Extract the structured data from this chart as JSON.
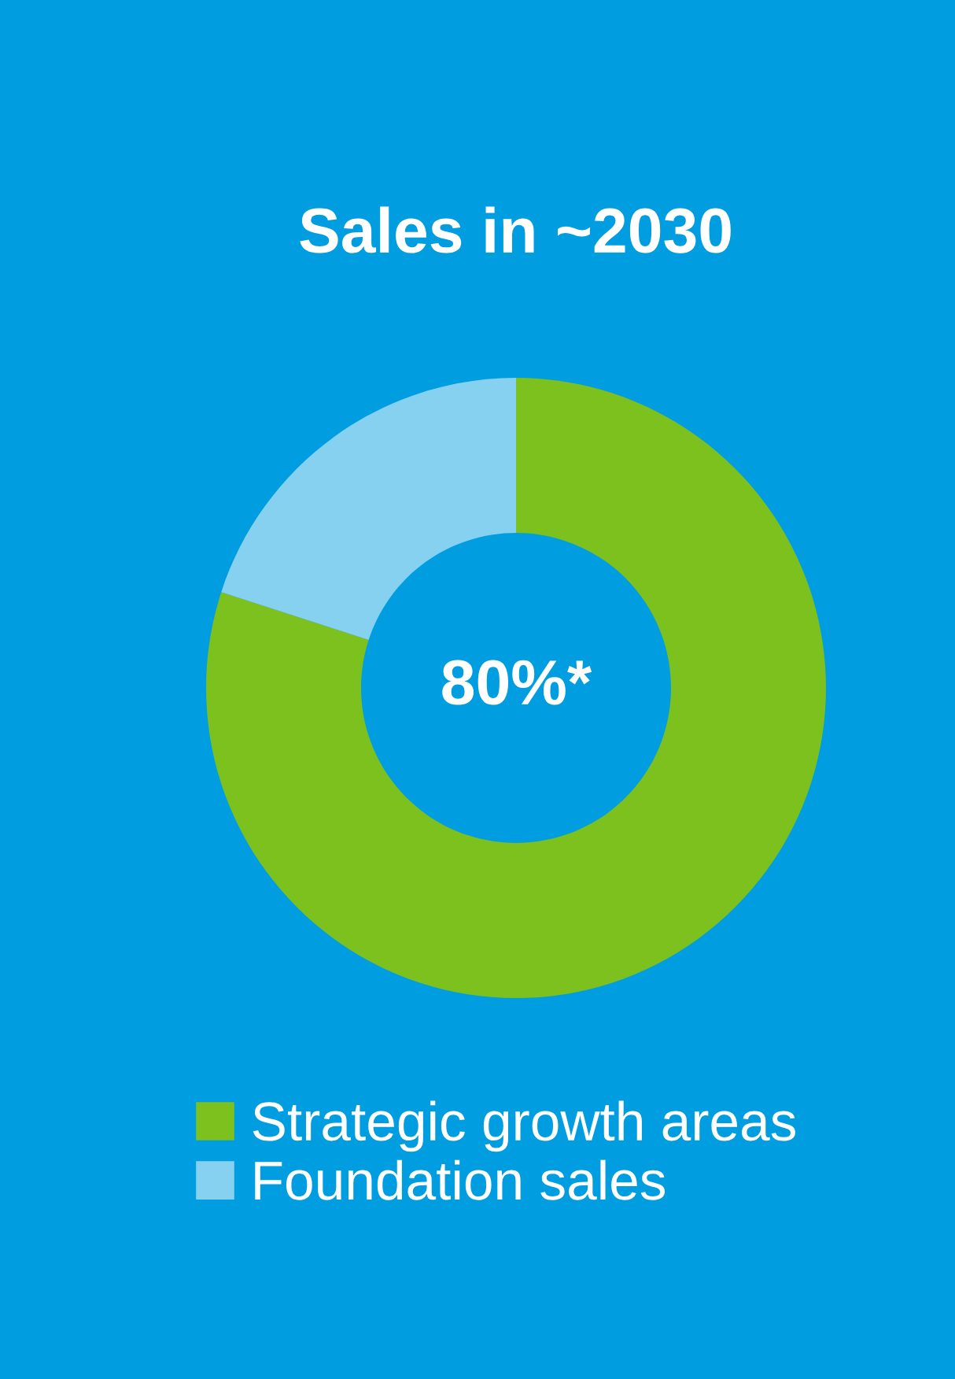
{
  "chart_data": {
    "type": "donut",
    "title": "Sales in ~2030",
    "categories": [
      "Strategic growth areas",
      "Foundation sales"
    ],
    "values": [
      80,
      20
    ],
    "colors": [
      "#7dc11f",
      "#87d1f0"
    ],
    "annotations": [
      "80%*"
    ],
    "legend": "bottom"
  }
}
